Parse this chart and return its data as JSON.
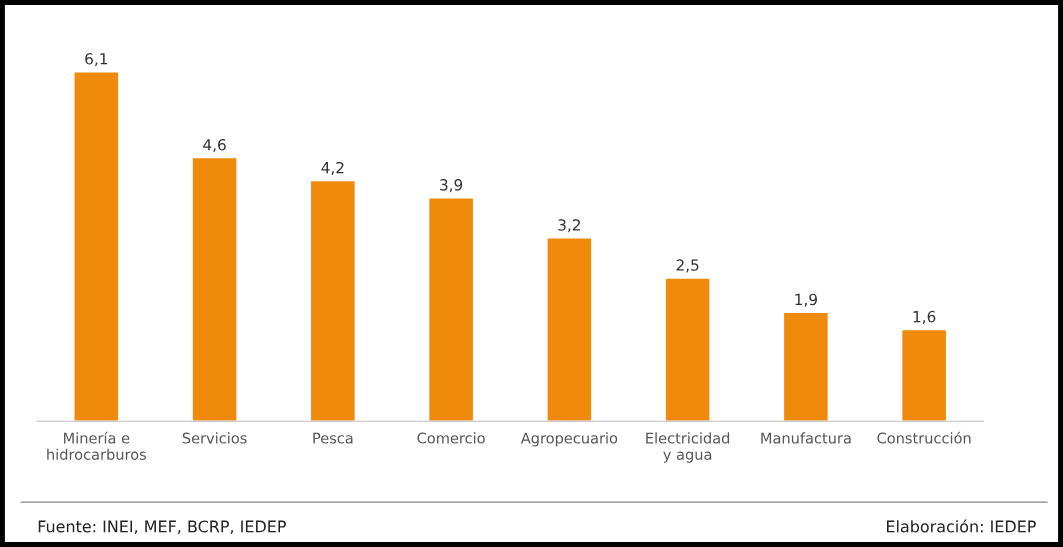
{
  "chart_data": {
    "type": "bar",
    "categories": [
      "Minería e\nhidrocarburos",
      "Servicios",
      "Pesca",
      "Comercio",
      "Agropecuario",
      "Electricidad\ny agua",
      "Manufactura",
      "Construcción"
    ],
    "values": [
      6.1,
      4.6,
      4.2,
      3.9,
      3.2,
      2.5,
      1.9,
      1.6
    ],
    "value_labels": [
      "6,1",
      "4,6",
      "4,2",
      "3,9",
      "3,2",
      "2,5",
      "1,9",
      "1,6"
    ],
    "color": "#ef8a0c",
    "grid": false,
    "legend": false,
    "annotations": [
      "Fuente: INEI, MEF, BCRP, IEDEP",
      "Elaboración: IEDEP"
    ]
  }
}
